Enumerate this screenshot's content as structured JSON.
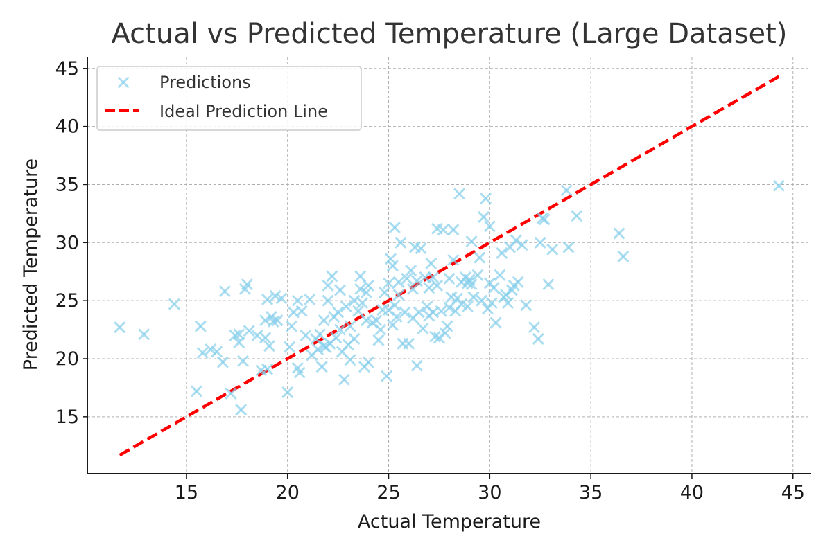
{
  "chart_data": {
    "type": "scatter",
    "title": "Actual vs Predicted Temperature (Large Dataset)",
    "xlabel": "Actual Temperature",
    "ylabel": "Predicted Temperature",
    "xlim": [
      10.1,
      45.9
    ],
    "ylim": [
      10.1,
      46.0
    ],
    "xticks": [
      15,
      20,
      25,
      30,
      35,
      40,
      45
    ],
    "yticks": [
      15,
      20,
      25,
      30,
      35,
      40,
      45
    ],
    "grid": true,
    "legend_position": "top-left",
    "legend": [
      "Predictions",
      "Ideal Prediction Line"
    ],
    "series": [
      {
        "name": "Predictions",
        "kind": "scatter",
        "marker": "x",
        "color": "#87CEEB",
        "points": [
          [
            11.7,
            22.7
          ],
          [
            12.9,
            22.1
          ],
          [
            14.4,
            24.7
          ],
          [
            15.5,
            17.2
          ],
          [
            15.7,
            22.8
          ],
          [
            15.8,
            20.5
          ],
          [
            16.2,
            20.8
          ],
          [
            16.5,
            20.6
          ],
          [
            16.8,
            19.7
          ],
          [
            16.9,
            25.8
          ],
          [
            17.2,
            17.0
          ],
          [
            17.4,
            22.0
          ],
          [
            17.6,
            21.4
          ],
          [
            17.6,
            22.1
          ],
          [
            17.7,
            15.6
          ],
          [
            17.8,
            19.8
          ],
          [
            17.9,
            26.0
          ],
          [
            18.0,
            26.4
          ],
          [
            18.1,
            22.4
          ],
          [
            18.5,
            22.0
          ],
          [
            18.7,
            19.0
          ],
          [
            18.9,
            21.8
          ],
          [
            18.9,
            23.3
          ],
          [
            19.0,
            19.1
          ],
          [
            19.0,
            25.1
          ],
          [
            19.1,
            21.1
          ],
          [
            19.2,
            23.6
          ],
          [
            19.3,
            23.2
          ],
          [
            19.4,
            25.4
          ],
          [
            19.5,
            23.3
          ],
          [
            19.7,
            25.2
          ],
          [
            20.0,
            17.1
          ],
          [
            20.1,
            21.0
          ],
          [
            20.2,
            22.8
          ],
          [
            20.3,
            24.0
          ],
          [
            20.5,
            25.0
          ],
          [
            20.5,
            19.2
          ],
          [
            20.6,
            18.8
          ],
          [
            20.7,
            24.1
          ],
          [
            20.9,
            22.0
          ],
          [
            21.1,
            25.1
          ],
          [
            21.2,
            20.3
          ],
          [
            21.4,
            21.7
          ],
          [
            21.5,
            20.8
          ],
          [
            21.6,
            22.1
          ],
          [
            21.7,
            19.3
          ],
          [
            21.8,
            21.1
          ],
          [
            21.8,
            23.3
          ],
          [
            21.9,
            21.0
          ],
          [
            22.0,
            25.0
          ],
          [
            22.0,
            26.3
          ],
          [
            22.1,
            21.3
          ],
          [
            22.2,
            27.1
          ],
          [
            22.3,
            23.6
          ],
          [
            22.4,
            21.8
          ],
          [
            22.5,
            24.0
          ],
          [
            22.6,
            22.5
          ],
          [
            22.6,
            25.9
          ],
          [
            22.7,
            20.6
          ],
          [
            22.8,
            18.2
          ],
          [
            22.9,
            24.5
          ],
          [
            23.0,
            21.2
          ],
          [
            23.1,
            22.8
          ],
          [
            23.1,
            19.9
          ],
          [
            23.3,
            21.7
          ],
          [
            23.3,
            25.0
          ],
          [
            23.5,
            24.1
          ],
          [
            23.6,
            26.0
          ],
          [
            23.6,
            27.1
          ],
          [
            23.7,
            24.8
          ],
          [
            23.8,
            19.3
          ],
          [
            23.9,
            25.7
          ],
          [
            23.9,
            23.3
          ],
          [
            24.0,
            26.3
          ],
          [
            24.0,
            19.7
          ],
          [
            24.2,
            23.1
          ],
          [
            24.4,
            23.3
          ],
          [
            24.5,
            21.6
          ],
          [
            24.6,
            22.5
          ],
          [
            24.7,
            24.2
          ],
          [
            24.8,
            25.7
          ],
          [
            24.9,
            18.5
          ],
          [
            25.0,
            24.2
          ],
          [
            25.0,
            26.5
          ],
          [
            25.1,
            28.6
          ],
          [
            25.2,
            22.9
          ],
          [
            25.2,
            28.0
          ],
          [
            25.3,
            31.3
          ],
          [
            25.3,
            24.6
          ],
          [
            25.4,
            23.6
          ],
          [
            25.5,
            25.5
          ],
          [
            25.5,
            26.6
          ],
          [
            25.6,
            30.0
          ],
          [
            25.7,
            21.3
          ],
          [
            25.8,
            24.0
          ],
          [
            25.9,
            26.9
          ],
          [
            26.0,
            21.3
          ],
          [
            26.1,
            27.6
          ],
          [
            26.2,
            26.0
          ],
          [
            26.2,
            23.5
          ],
          [
            26.3,
            29.6
          ],
          [
            26.4,
            19.4
          ],
          [
            26.4,
            26.7
          ],
          [
            26.5,
            24.0
          ],
          [
            26.6,
            29.5
          ],
          [
            26.7,
            22.6
          ],
          [
            26.8,
            27.0
          ],
          [
            26.9,
            24.5
          ],
          [
            27.0,
            23.7
          ],
          [
            27.0,
            26.1
          ],
          [
            27.1,
            28.2
          ],
          [
            27.2,
            27.0
          ],
          [
            27.2,
            24.0
          ],
          [
            27.3,
            21.9
          ],
          [
            27.4,
            26.3
          ],
          [
            27.4,
            31.2
          ],
          [
            27.5,
            21.8
          ],
          [
            27.6,
            24.1
          ],
          [
            27.7,
            31.1
          ],
          [
            27.8,
            22.2
          ],
          [
            27.9,
            22.8
          ],
          [
            28.0,
            26.9
          ],
          [
            28.0,
            24.4
          ],
          [
            28.1,
            25.3
          ],
          [
            28.2,
            31.1
          ],
          [
            28.2,
            28.5
          ],
          [
            28.3,
            24.1
          ],
          [
            28.4,
            25.2
          ],
          [
            28.5,
            34.2
          ],
          [
            28.6,
            26.6
          ],
          [
            28.6,
            24.7
          ],
          [
            28.8,
            27.0
          ],
          [
            28.9,
            24.5
          ],
          [
            28.9,
            26.5
          ],
          [
            29.0,
            26.8
          ],
          [
            29.1,
            30.1
          ],
          [
            29.1,
            26.4
          ],
          [
            29.2,
            25.3
          ],
          [
            29.4,
            27.2
          ],
          [
            29.5,
            28.7
          ],
          [
            29.6,
            25.0
          ],
          [
            29.7,
            32.2
          ],
          [
            29.8,
            33.8
          ],
          [
            29.9,
            24.3
          ],
          [
            30.0,
            26.5
          ],
          [
            30.0,
            31.4
          ],
          [
            30.1,
            24.8
          ],
          [
            30.2,
            26.1
          ],
          [
            30.3,
            23.1
          ],
          [
            30.5,
            27.2
          ],
          [
            30.6,
            29.1
          ],
          [
            30.7,
            25.3
          ],
          [
            30.8,
            25.5
          ],
          [
            30.9,
            24.8
          ],
          [
            31.0,
            29.6
          ],
          [
            31.1,
            25.9
          ],
          [
            31.2,
            26.3
          ],
          [
            31.3,
            30.2
          ],
          [
            31.4,
            26.6
          ],
          [
            31.6,
            29.8
          ],
          [
            31.8,
            24.6
          ],
          [
            32.2,
            22.7
          ],
          [
            32.4,
            21.7
          ],
          [
            32.5,
            30.0
          ],
          [
            32.6,
            32.1
          ],
          [
            32.7,
            32.0
          ],
          [
            32.9,
            26.4
          ],
          [
            33.1,
            29.4
          ],
          [
            33.8,
            34.5
          ],
          [
            33.9,
            29.6
          ],
          [
            34.3,
            32.3
          ],
          [
            36.4,
            30.8
          ],
          [
            36.6,
            28.8
          ],
          [
            44.3,
            34.9
          ]
        ]
      },
      {
        "name": "Ideal Prediction Line",
        "kind": "line",
        "style": "dashed",
        "color": "#ff0000",
        "points": [
          [
            11.7,
            11.7
          ],
          [
            44.3,
            44.3
          ]
        ]
      }
    ]
  }
}
